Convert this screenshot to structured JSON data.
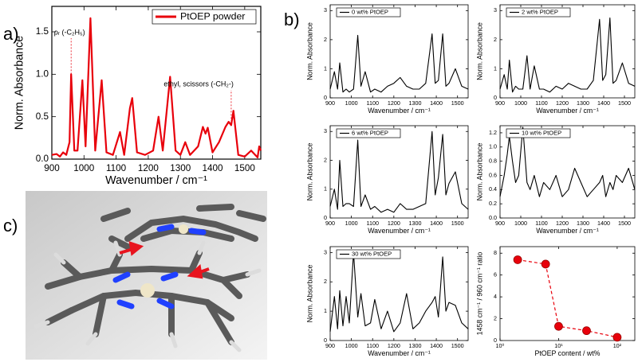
{
  "panel_labels": [
    "a)",
    "b)",
    "c)"
  ],
  "chart_data": [
    {
      "type": "line",
      "xlabel": "Wavenumber / cm⁻¹",
      "ylabel": "Norm. Absorbance",
      "legend": "upper right",
      "xlim": [
        900,
        1550
      ],
      "xticks": [
        900,
        1000,
        1100,
        1200,
        1300,
        1400,
        1500
      ],
      "ylim": [
        0,
        1.8
      ],
      "yticks": [
        {
          "value": 0,
          "label": "0.0"
        },
        0.5,
        {
          "value": 1,
          "label": "1.0"
        },
        1.5
      ],
      "x": [
        900,
        915,
        925,
        935,
        945,
        955,
        960,
        970,
        980,
        995,
        1005,
        1020,
        1035,
        1055,
        1070,
        1090,
        1112,
        1125,
        1143,
        1150,
        1165,
        1190,
        1215,
        1232,
        1245,
        1268,
        1285,
        1300,
        1315,
        1330,
        1355,
        1370,
        1378,
        1385,
        1400,
        1420,
        1440,
        1450,
        1458,
        1465,
        1480,
        1500,
        1520,
        1540,
        1545,
        1550
      ],
      "series": [
        {
          "name": "PtOEP powder",
          "color": "#e8000b",
          "values": [
            0.05,
            0.06,
            0.03,
            0.08,
            0.05,
            0.2,
            1.0,
            0.1,
            0.1,
            0.93,
            0.15,
            1.66,
            0.1,
            0.93,
            0.08,
            0.05,
            0.32,
            0.05,
            0.6,
            0.72,
            0.08,
            0.05,
            0.1,
            0.5,
            0.1,
            0.97,
            0.1,
            0.05,
            0.2,
            0.05,
            0.15,
            0.38,
            0.3,
            0.37,
            0.08,
            0.2,
            0.38,
            0.44,
            0.4,
            0.57,
            0.05,
            0.03,
            0.1,
            0.02,
            0.15,
            0.1
          ]
        }
      ],
      "annotations": [
        {
          "text": "ρᵣ (-C₂H₅)",
          "x": 960,
          "y": 1.0
        },
        {
          "text": "ethyl, scissors (-CH₂-)",
          "x": 1458,
          "y": 0.4
        }
      ]
    },
    {
      "type": "line",
      "xlabel": "Wavenumber / cm⁻¹",
      "ylabel": "Norm. Absorbance",
      "legend": "upper left",
      "xlim": [
        900,
        1550
      ],
      "xticks": [
        900,
        1000,
        1100,
        1200,
        1300,
        1400,
        1500
      ],
      "ylim": [
        0,
        3.2
      ],
      "yticks": [
        0,
        1,
        2,
        3
      ],
      "x": [
        900,
        920,
        935,
        945,
        960,
        975,
        990,
        1010,
        1030,
        1045,
        1065,
        1090,
        1110,
        1140,
        1170,
        1200,
        1230,
        1260,
        1290,
        1320,
        1350,
        1380,
        1395,
        1410,
        1430,
        1445,
        1460,
        1490,
        1520,
        1550
      ],
      "series": [
        {
          "name": "0 wt% PtOEP",
          "color": "#000000",
          "values": [
            0.3,
            0.9,
            0.3,
            1.2,
            0.2,
            0.3,
            0.2,
            0.3,
            2.15,
            0.4,
            0.9,
            0.2,
            0.3,
            0.2,
            0.4,
            0.5,
            0.7,
            0.4,
            0.3,
            0.3,
            0.5,
            2.2,
            0.5,
            0.6,
            2.2,
            0.4,
            0.5,
            1.0,
            0.4,
            0.3
          ]
        }
      ]
    },
    {
      "type": "line",
      "xlabel": "Wavenumber / cm⁻¹",
      "ylabel": "Norm. Absorbance",
      "legend": "upper left",
      "xlim": [
        900,
        1550
      ],
      "xticks": [
        900,
        1000,
        1100,
        1200,
        1300,
        1400,
        1500
      ],
      "ylim": [
        0,
        3.2
      ],
      "yticks": [
        0,
        1,
        2,
        3
      ],
      "x": [
        900,
        920,
        935,
        945,
        960,
        975,
        990,
        1010,
        1030,
        1045,
        1065,
        1090,
        1110,
        1140,
        1170,
        1200,
        1230,
        1260,
        1290,
        1320,
        1350,
        1380,
        1395,
        1410,
        1430,
        1445,
        1460,
        1490,
        1520,
        1550
      ],
      "series": [
        {
          "name": "2 wt% PtOEP",
          "color": "#000000",
          "values": [
            0.3,
            0.8,
            0.3,
            1.3,
            0.2,
            0.4,
            0.3,
            0.3,
            1.45,
            0.3,
            1.1,
            0.3,
            0.3,
            0.2,
            0.4,
            0.3,
            0.5,
            0.4,
            0.3,
            0.3,
            0.6,
            2.7,
            0.6,
            0.8,
            2.75,
            0.5,
            0.6,
            1.2,
            0.5,
            0.4
          ]
        }
      ]
    },
    {
      "type": "line",
      "xlabel": "Wavenumber / cm⁻¹",
      "ylabel": "Norm. Absorbance",
      "legend": "upper left",
      "xlim": [
        900,
        1550
      ],
      "xticks": [
        900,
        1000,
        1100,
        1200,
        1300,
        1400,
        1500
      ],
      "ylim": [
        0,
        3.2
      ],
      "yticks": [
        0,
        1,
        2,
        3
      ],
      "x": [
        900,
        920,
        935,
        945,
        960,
        975,
        990,
        1010,
        1030,
        1045,
        1065,
        1090,
        1110,
        1140,
        1170,
        1200,
        1230,
        1260,
        1290,
        1320,
        1350,
        1380,
        1395,
        1410,
        1430,
        1445,
        1460,
        1490,
        1520,
        1550
      ],
      "series": [
        {
          "name": "6 wt% PtOEP",
          "color": "#000000",
          "values": [
            0.4,
            1.0,
            0.3,
            2.0,
            0.4,
            0.5,
            0.5,
            0.4,
            2.7,
            0.4,
            0.8,
            0.3,
            0.4,
            0.2,
            0.3,
            0.2,
            0.5,
            0.3,
            0.3,
            0.4,
            0.5,
            3.0,
            0.8,
            1.4,
            2.9,
            0.8,
            1.2,
            1.6,
            0.5,
            0.3
          ]
        }
      ]
    },
    {
      "type": "line",
      "xlabel": "Wavenumber / cm⁻¹",
      "ylabel": "Norm. Absorbance",
      "legend": "upper left",
      "xlim": [
        900,
        1550
      ],
      "xticks": [
        900,
        1000,
        1100,
        1200,
        1300,
        1400,
        1500
      ],
      "ylim": [
        0,
        1.3
      ],
      "yticks": [
        {
          "value": 0,
          "label": "0.0"
        },
        0.2,
        0.4,
        0.6,
        0.8,
        {
          "value": 1,
          "label": "1.0"
        },
        1.2
      ],
      "x": [
        900,
        920,
        935,
        945,
        960,
        975,
        990,
        1010,
        1030,
        1045,
        1065,
        1090,
        1110,
        1140,
        1170,
        1200,
        1230,
        1260,
        1290,
        1320,
        1350,
        1380,
        1395,
        1410,
        1430,
        1445,
        1460,
        1490,
        1520,
        1550
      ],
      "series": [
        {
          "name": "10 wt% PtOEP",
          "color": "#000000",
          "values": [
            0.3,
            0.6,
            0.9,
            1.15,
            0.8,
            0.5,
            0.6,
            1.28,
            0.5,
            0.4,
            0.6,
            0.3,
            0.5,
            0.4,
            0.6,
            0.3,
            0.4,
            0.7,
            0.5,
            0.3,
            0.4,
            0.5,
            0.6,
            0.3,
            0.5,
            0.4,
            0.6,
            0.5,
            0.7,
            0.4
          ]
        }
      ]
    },
    {
      "type": "line",
      "xlabel": "Wavenumber / cm⁻¹",
      "ylabel": "Norm. Absorbance",
      "legend": "upper left",
      "xlim": [
        900,
        1550
      ],
      "xticks": [
        900,
        1000,
        1100,
        1200,
        1300,
        1400,
        1500
      ],
      "ylim": [
        0,
        3.2
      ],
      "yticks": [
        0,
        1,
        2,
        3
      ],
      "x": [
        900,
        920,
        935,
        945,
        960,
        975,
        990,
        1010,
        1030,
        1045,
        1065,
        1090,
        1110,
        1140,
        1170,
        1200,
        1230,
        1260,
        1290,
        1320,
        1350,
        1380,
        1395,
        1410,
        1430,
        1445,
        1460,
        1490,
        1520,
        1550
      ],
      "series": [
        {
          "name": "30 wt% PtOEP",
          "color": "#000000",
          "values": [
            0.3,
            1.5,
            0.4,
            1.7,
            0.5,
            1.5,
            0.6,
            3.0,
            0.8,
            1.6,
            0.5,
            0.6,
            1.4,
            0.4,
            1.0,
            0.3,
            0.6,
            1.6,
            0.4,
            0.6,
            1.0,
            1.3,
            1.5,
            0.8,
            2.85,
            1.0,
            1.3,
            1.2,
            0.6,
            0.4
          ]
        }
      ]
    },
    {
      "type": "scatter",
      "xlabel": "PtOEP content / wt%",
      "ylabel": "1458 cm⁻¹ / 960 cm⁻¹ ratio",
      "xscale": "log",
      "xlim": [
        1,
        200
      ],
      "xticks": [
        {
          "value": 1,
          "label": "10⁰"
        },
        {
          "value": 10,
          "label": "10¹"
        },
        {
          "value": 100,
          "label": "10²"
        }
      ],
      "ylim": [
        0,
        8.6
      ],
      "yticks": [
        0,
        2,
        4,
        6,
        8
      ],
      "x": [
        2,
        6,
        10,
        30,
        100
      ],
      "series": [
        {
          "color": "#e8000b",
          "values": [
            7.4,
            7.0,
            1.3,
            0.9,
            0.3
          ]
        }
      ]
    }
  ]
}
